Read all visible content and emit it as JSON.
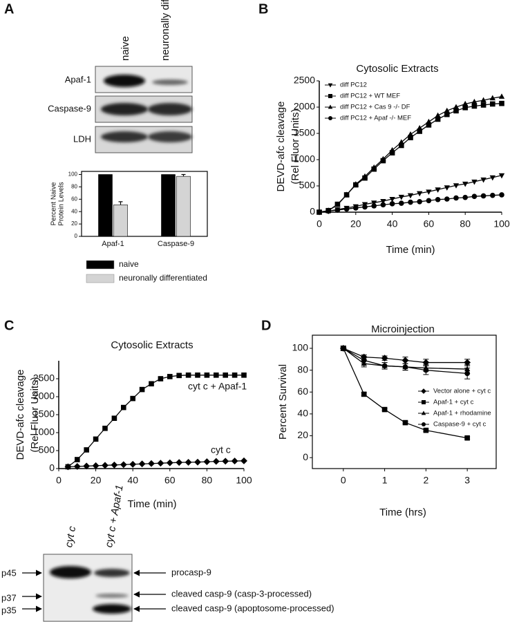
{
  "panel_labels": [
    "A",
    "B",
    "C",
    "D"
  ],
  "blot_a": {
    "lanes": [
      "naive",
      "neuronally differentiated"
    ],
    "rows": [
      "Apaf-1",
      "Caspase-9",
      "LDH"
    ]
  },
  "blot_c": {
    "lanes": [
      "cyt c",
      "cyt c + Apaf-1"
    ],
    "markers": [
      "p45",
      "p37",
      "p35"
    ],
    "bands": [
      "procasp-9",
      "cleaved casp-9 (casp-3-processed)",
      "cleaved casp-9 (apoptosome-processed)"
    ]
  },
  "chart_data": [
    {
      "type": "bar",
      "ylabel": [
        "Percent Naive",
        "Protein Levels"
      ],
      "categories": [
        "Apaf-1",
        "Caspase-9"
      ],
      "series": [
        {
          "name": "naive",
          "color": "#000000",
          "values": [
            100,
            100
          ]
        },
        {
          "name": "neuronally differentiated",
          "color": "#d4d4d4",
          "values": [
            51,
            97
          ],
          "errors": [
            5,
            3
          ]
        }
      ],
      "ylim": [
        0,
        105
      ],
      "yticks": [
        0,
        20,
        40,
        60,
        80,
        100
      ],
      "legend": "below"
    },
    {
      "type": "line",
      "title": "Cytosolic Extracts",
      "xlabel": "Time (min)",
      "ylabel": [
        "DEVD-afc cleavage",
        "(Rel Fluor Units)"
      ],
      "x": [
        0,
        5,
        10,
        15,
        20,
        25,
        30,
        35,
        40,
        45,
        50,
        55,
        60,
        65,
        70,
        75,
        80,
        85,
        90,
        95,
        100
      ],
      "series": [
        {
          "name": "diff PC12",
          "color": "#000000",
          "marker": "triangle-down",
          "values": [
            0,
            20,
            50,
            80,
            110,
            150,
            180,
            210,
            250,
            290,
            320,
            360,
            390,
            430,
            470,
            510,
            540,
            580,
            620,
            660,
            700
          ]
        },
        {
          "name": "diff PC12 + WT MEF",
          "color": "#000000",
          "marker": "square",
          "values": [
            0,
            30,
            150,
            330,
            520,
            650,
            820,
            980,
            1130,
            1270,
            1420,
            1540,
            1660,
            1770,
            1860,
            1930,
            1990,
            2020,
            2040,
            2060,
            2070
          ]
        },
        {
          "name": "diff PC12 + Cas 9 -/- DF",
          "color": "#000000",
          "marker": "triangle-up",
          "values": [
            0,
            30,
            140,
            330,
            530,
            680,
            850,
            1010,
            1180,
            1330,
            1480,
            1600,
            1720,
            1840,
            1930,
            2000,
            2060,
            2100,
            2130,
            2170,
            2200
          ]
        },
        {
          "name": "diff PC12 + Apaf -/- MEF",
          "color": "#000000",
          "marker": "circle",
          "values": [
            0,
            20,
            40,
            60,
            80,
            100,
            120,
            140,
            160,
            170,
            190,
            200,
            220,
            240,
            250,
            270,
            280,
            300,
            310,
            320,
            330
          ]
        }
      ],
      "xlim": [
        0,
        100
      ],
      "xticks": [
        0,
        20,
        40,
        60,
        80,
        100
      ],
      "ylim": [
        0,
        2500
      ],
      "yticks": [
        0,
        500,
        1000,
        1500,
        2000,
        2500
      ],
      "legend": "upper left"
    },
    {
      "type": "line",
      "title": "Cytosolic Extracts",
      "xlabel": "Time (min)",
      "ylabel": [
        "DEVD-afc cleavage",
        "(Rel Fluor Units)"
      ],
      "x": [
        5,
        10,
        15,
        20,
        25,
        30,
        35,
        40,
        45,
        50,
        55,
        60,
        65,
        70,
        75,
        80,
        85,
        90,
        95,
        100
      ],
      "series": [
        {
          "name": "cyt c + Apaf-1",
          "color": "#000000",
          "marker": "square",
          "values": [
            50,
            250,
            520,
            820,
            1120,
            1400,
            1700,
            1950,
            2200,
            2360,
            2500,
            2560,
            2590,
            2600,
            2600,
            2600,
            2600,
            2600,
            2600,
            2600
          ]
        },
        {
          "name": "cyt c",
          "color": "#000000",
          "marker": "diamond",
          "values": [
            50,
            60,
            70,
            80,
            90,
            100,
            110,
            120,
            130,
            140,
            150,
            160,
            170,
            175,
            180,
            190,
            200,
            205,
            210,
            215
          ]
        }
      ],
      "xlim": [
        0,
        100
      ],
      "xticks": [
        0,
        20,
        40,
        60,
        80,
        100
      ],
      "ylim": [
        0,
        3000
      ],
      "yticks": [
        0,
        500,
        1000,
        1500,
        2000,
        2500
      ],
      "legend": "annotations"
    },
    {
      "type": "line",
      "title": "Microinjection",
      "xlabel": "Time (hrs)",
      "ylabel": [
        "Percent Survival"
      ],
      "x": [
        0,
        0.5,
        1,
        1.5,
        2,
        3
      ],
      "series": [
        {
          "name": "Vector alone + cyt c",
          "color": "#000000",
          "marker": "diamond",
          "values": [
            100,
            92,
            91,
            89,
            87,
            87
          ],
          "errors": [
            2,
            2,
            2,
            3,
            3,
            3
          ]
        },
        {
          "name": "Apaf-1 + cyt c",
          "color": "#000000",
          "marker": "square",
          "values": [
            100,
            58,
            44,
            32,
            25,
            18
          ],
          "errors": [
            1,
            1.5,
            1,
            1,
            1,
            1
          ]
        },
        {
          "name": "Apaf-1 + rhodamine",
          "color": "#000000",
          "marker": "triangle-up",
          "values": [
            100,
            86,
            84,
            83,
            82,
            81
          ],
          "errors": [
            2,
            3,
            3,
            3,
            3,
            4
          ]
        },
        {
          "name": "Caspase-9 + cyt c",
          "color": "#000000",
          "marker": "circle",
          "values": [
            100,
            89,
            84,
            83,
            80,
            77
          ],
          "errors": [
            2,
            3,
            3,
            3,
            4,
            5
          ]
        }
      ],
      "xlim": [
        -0.75,
        3.7
      ],
      "xticks": [
        0,
        1,
        2,
        3
      ],
      "ylim": [
        -10,
        112
      ],
      "yticks": [
        0,
        20,
        40,
        60,
        80,
        100
      ],
      "legend": "center right"
    }
  ]
}
